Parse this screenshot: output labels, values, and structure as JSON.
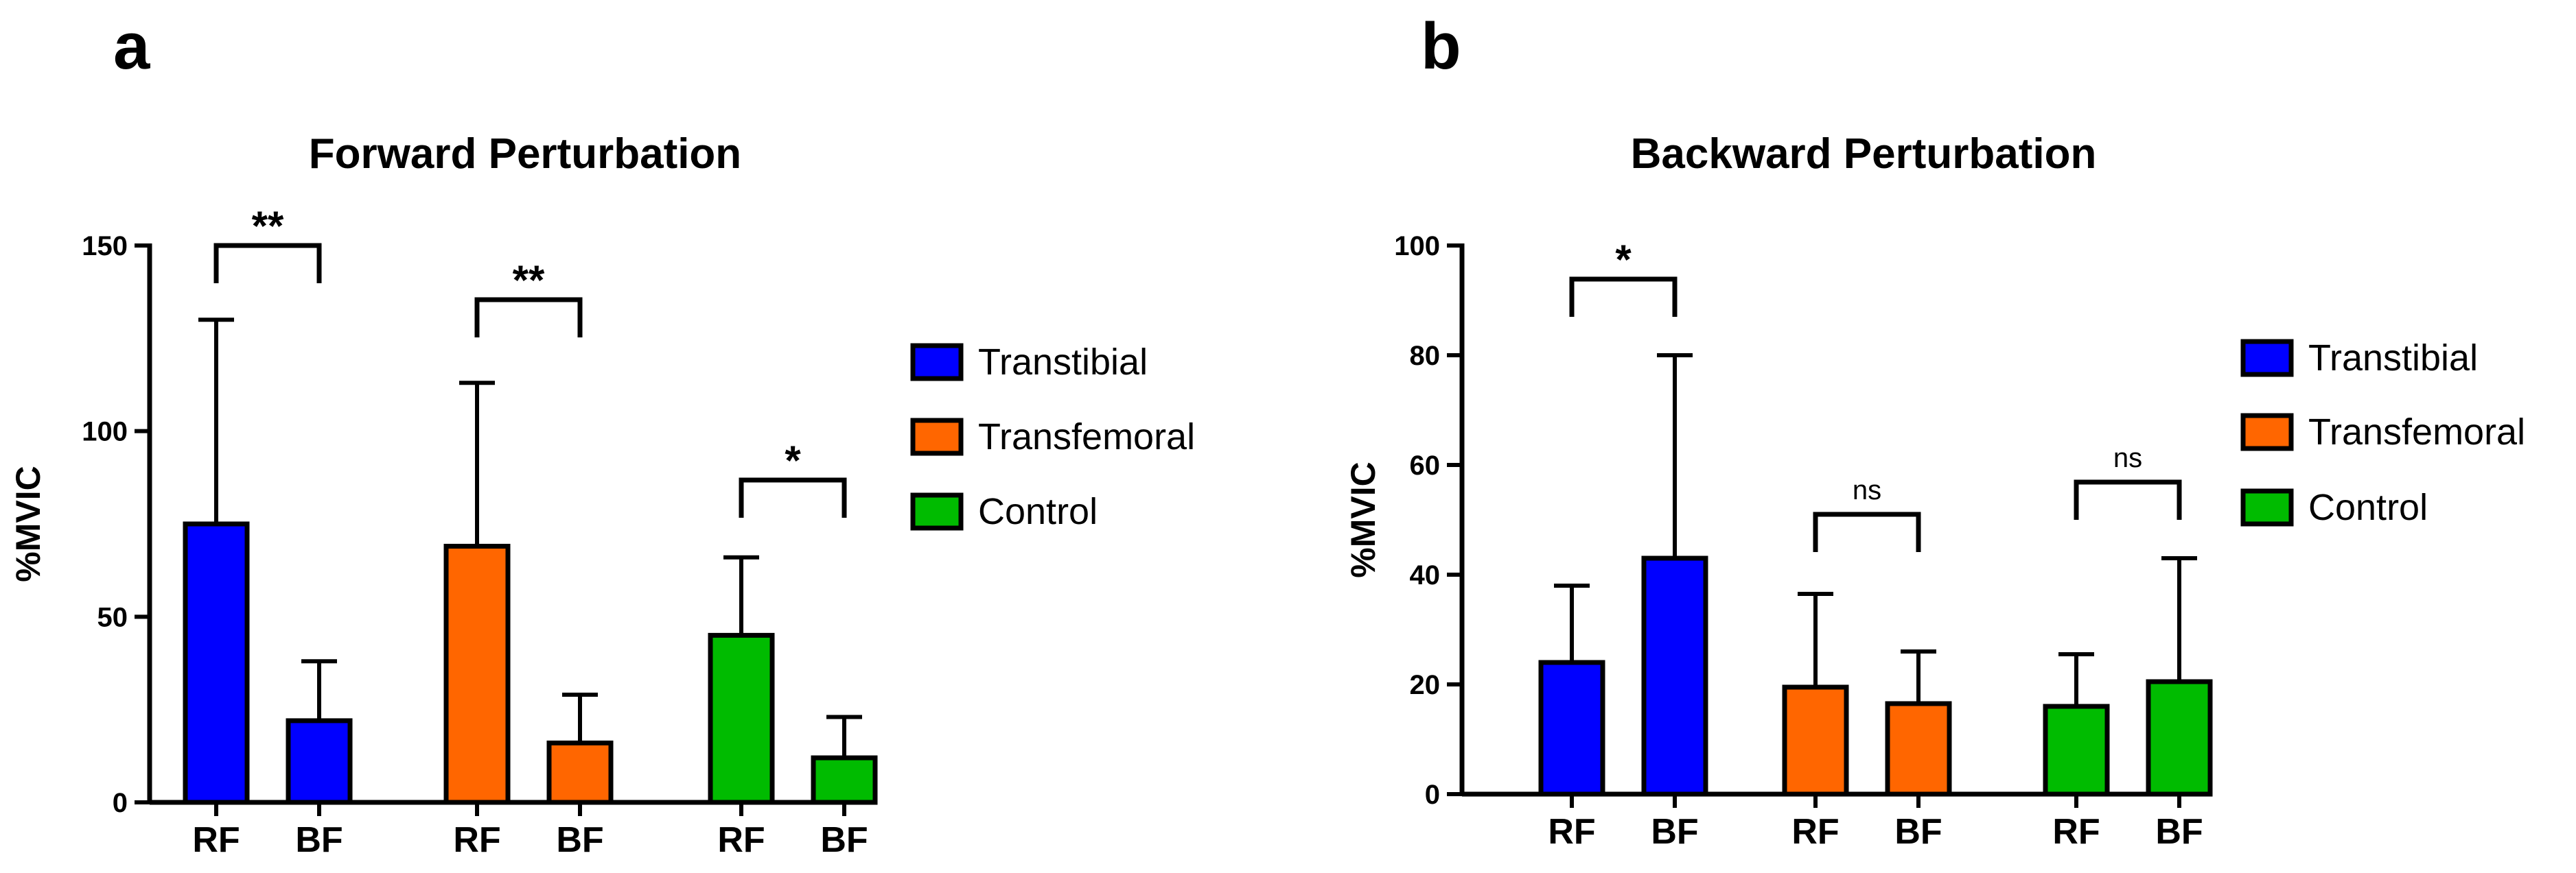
{
  "chart_data": [
    {
      "panel_label": "a",
      "type": "bar",
      "title": "Forward Perturbation",
      "ylabel": "%MVIC",
      "xlabel": "",
      "ylim": [
        0,
        150
      ],
      "yticks": [
        0,
        50,
        100,
        150
      ],
      "groups": [
        {
          "name": "Transtibial",
          "color": "#0000FF",
          "bars": [
            {
              "label": "RF",
              "value": 75,
              "error": 130
            },
            {
              "label": "BF",
              "value": 22,
              "error": 38
            }
          ],
          "significance": "**"
        },
        {
          "name": "Transfemoral",
          "color": "#FF6600",
          "bars": [
            {
              "label": "RF",
              "value": 69,
              "error": 113
            },
            {
              "label": "BF",
              "value": 16,
              "error": 29
            }
          ],
          "significance": "**"
        },
        {
          "name": "Control",
          "color": "#00BB00",
          "bars": [
            {
              "label": "RF",
              "value": 45,
              "error": 66
            },
            {
              "label": "BF",
              "value": 12,
              "error": 23
            }
          ],
          "significance": "*"
        }
      ],
      "legend": [
        "Transtibial",
        "Transfemoral",
        "Control"
      ],
      "legend_position": "right"
    },
    {
      "panel_label": "b",
      "type": "bar",
      "title": "Backward Perturbation",
      "ylabel": "%MVIC",
      "xlabel": "",
      "ylim": [
        0,
        100
      ],
      "yticks": [
        0,
        20,
        40,
        60,
        80,
        100
      ],
      "groups": [
        {
          "name": "Transtibial",
          "color": "#0000FF",
          "bars": [
            {
              "label": "RF",
              "value": 24,
              "error": 38
            },
            {
              "label": "BF",
              "value": 43,
              "error": 80
            }
          ],
          "significance": "*"
        },
        {
          "name": "Transfemoral",
          "color": "#FF6600",
          "bars": [
            {
              "label": "RF",
              "value": 19.5,
              "error": 36.5
            },
            {
              "label": "BF",
              "value": 16.5,
              "error": 26
            }
          ],
          "significance": "ns"
        },
        {
          "name": "Control",
          "color": "#00BB00",
          "bars": [
            {
              "label": "RF",
              "value": 16,
              "error": 25.5
            },
            {
              "label": "BF",
              "value": 20.5,
              "error": 43
            }
          ],
          "significance": "ns"
        }
      ],
      "legend": [
        "Transtibial",
        "Transfemoral",
        "Control"
      ],
      "legend_position": "right"
    }
  ]
}
